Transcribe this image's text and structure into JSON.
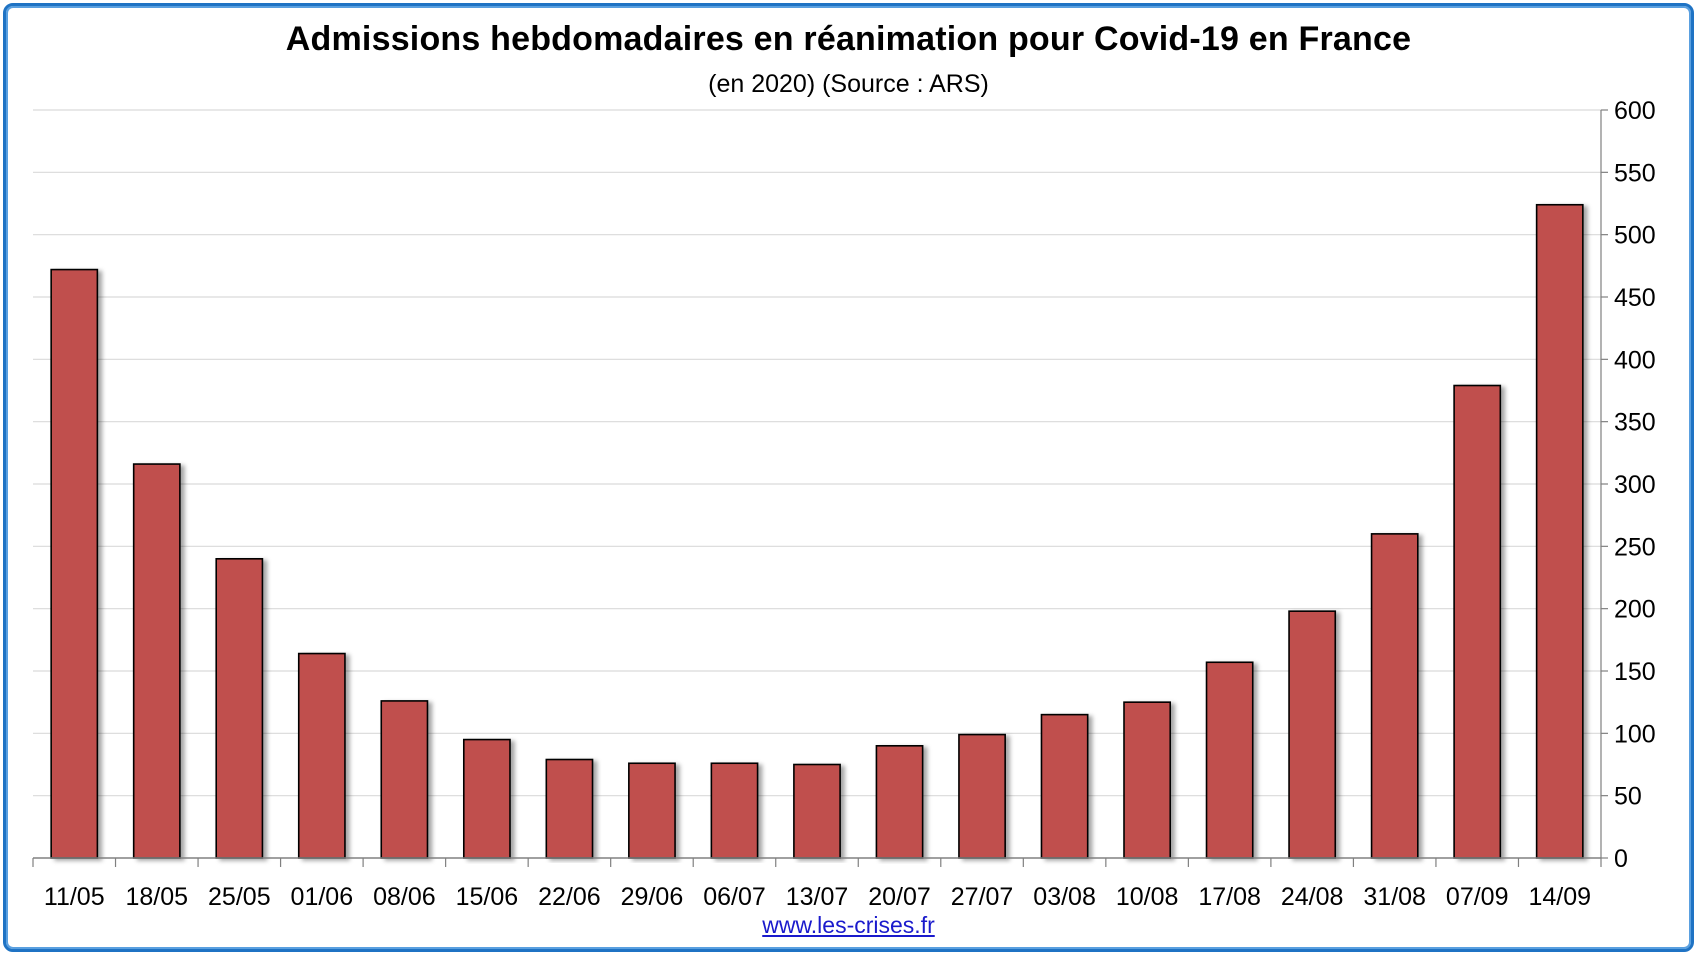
{
  "chart_data": {
    "type": "bar",
    "title": "Admissions hebdomadaires en réanimation pour Covid-19 en France",
    "subtitle": "(en 2020) (Source : ARS)",
    "categories": [
      "11/05",
      "18/05",
      "25/05",
      "01/06",
      "08/06",
      "15/06",
      "22/06",
      "29/06",
      "06/07",
      "13/07",
      "20/07",
      "27/07",
      "03/08",
      "10/08",
      "17/08",
      "24/08",
      "31/08",
      "07/09",
      "14/09"
    ],
    "values": [
      472,
      316,
      240,
      164,
      126,
      95,
      79,
      76,
      76,
      75,
      90,
      99,
      115,
      125,
      157,
      198,
      260,
      379,
      524
    ],
    "ylim": [
      0,
      600
    ],
    "yticks": [
      0,
      50,
      100,
      150,
      200,
      250,
      300,
      350,
      400,
      450,
      500,
      550,
      600
    ],
    "y_axis_side": "right",
    "grid": true,
    "bar_color": "#c0504d"
  },
  "footer": {
    "source_link": "www.les-crises.fr"
  }
}
